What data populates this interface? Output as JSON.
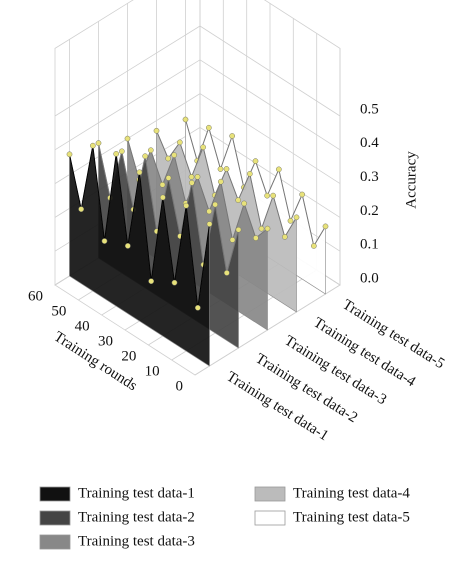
{
  "chart_data": {
    "type": "wall3d",
    "xlabel": "Training rounds",
    "zlabel": "Accuracy",
    "x": [
      0,
      5,
      10,
      15,
      20,
      25,
      30,
      35,
      40,
      45,
      50,
      55,
      60
    ],
    "xlim": [
      0,
      60
    ],
    "xticks": [
      0,
      10,
      20,
      30,
      40,
      50,
      60
    ],
    "zlim": [
      0,
      0.5
    ],
    "zticks": [
      {
        "value": 0,
        "label": "0.0"
      },
      0.1,
      0.2,
      0.3,
      0.4,
      0.5
    ],
    "grid": true,
    "point_color": "#e8e27a",
    "series": [
      {
        "name": "Training test data-1",
        "color": "#111111",
        "values": [
          0.42,
          0.15,
          0.43,
          0.18,
          0.41,
          0.14,
          0.44,
          0.2,
          0.45,
          0.17,
          0.43,
          0.22,
          0.36
        ]
      },
      {
        "name": "Training test data-2",
        "color": "#444444",
        "values": [
          0.35,
          0.2,
          0.38,
          0.18,
          0.4,
          0.22,
          0.37,
          0.19,
          0.39,
          0.21,
          0.36,
          0.2,
          0.34
        ]
      },
      {
        "name": "Training test data-3",
        "color": "#888888",
        "values": [
          0.3,
          0.25,
          0.33,
          0.2,
          0.35,
          0.24,
          0.32,
          0.22,
          0.34,
          0.23,
          0.31,
          0.2,
          0.3
        ]
      },
      {
        "name": "Training test data-4",
        "color": "#bbbbbb",
        "values": [
          0.28,
          0.2,
          0.3,
          0.18,
          0.32,
          0.22,
          0.29,
          0.19,
          0.31,
          0.2,
          0.28,
          0.21,
          0.27
        ]
      },
      {
        "name": "Training test data-5",
        "color": "#ffffff",
        "values": [
          0.2,
          0.12,
          0.25,
          0.15,
          0.28,
          0.18,
          0.26,
          0.16,
          0.29,
          0.17,
          0.27,
          0.15,
          0.25
        ]
      }
    ]
  }
}
